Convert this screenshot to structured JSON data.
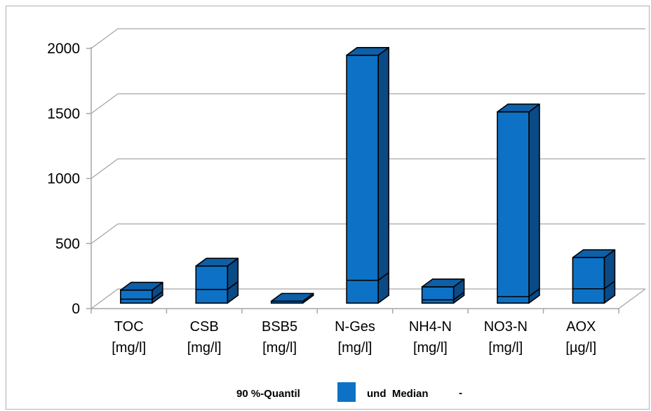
{
  "chart_data": {
    "type": "bar",
    "categories": [
      [
        "TOC",
        "[mg/l]"
      ],
      [
        "CSB",
        "[mg/l]"
      ],
      [
        "BSB5",
        "[mg/l]"
      ],
      [
        "N-Ges",
        "[mg/l]"
      ],
      [
        "NH4-N",
        "[mg/l]"
      ],
      [
        "NO3-N",
        "[mg/l]"
      ],
      [
        "AOX",
        "[µg/l]"
      ]
    ],
    "series": [
      {
        "name": "90 %-Quantil",
        "values": [
          100,
          285,
          15,
          1905,
          125,
          1470,
          350
        ]
      },
      {
        "name": "Median",
        "values": [
          30,
          105,
          5,
          175,
          25,
          50,
          110
        ]
      }
    ],
    "yticks": [
      0,
      500,
      1000,
      1500,
      2000
    ],
    "ylim": [
      0,
      2000
    ],
    "grid": true,
    "legend_placement": "bottom",
    "colors": {
      "bar_front": "#0d72c5",
      "bar_top": "#0e5fa8",
      "bar_side": "#0a4a86",
      "outline": "#000000",
      "grid": "#a6a6a6"
    }
  },
  "legend": {
    "quantile_label": "90 %-Quantil",
    "median_prefix": "und  Median",
    "median_marker": "-"
  }
}
